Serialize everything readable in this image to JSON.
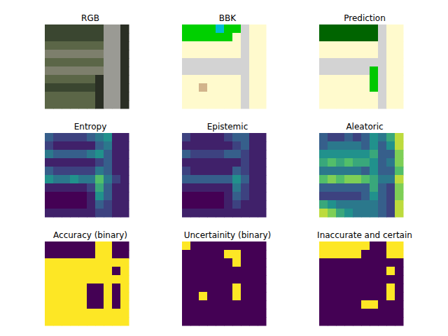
{
  "chart_data": [
    {
      "type": "image",
      "title": "RGB",
      "tick_labels": false,
      "colors": [
        "#3a4630",
        "#5b6647",
        "#9a9a94",
        "#2a2f24",
        "#7d7f6c"
      ],
      "cells": [
        [
          0,
          0,
          0,
          0,
          0,
          0,
          0,
          2,
          2,
          3
        ],
        [
          0,
          0,
          0,
          0,
          0,
          0,
          0,
          2,
          2,
          3
        ],
        [
          1,
          1,
          1,
          1,
          1,
          1,
          1,
          2,
          2,
          3
        ],
        [
          4,
          4,
          4,
          4,
          4,
          4,
          4,
          2,
          2,
          3
        ],
        [
          1,
          1,
          1,
          1,
          1,
          1,
          1,
          2,
          2,
          3
        ],
        [
          4,
          4,
          4,
          4,
          4,
          4,
          4,
          2,
          2,
          3
        ],
        [
          1,
          1,
          1,
          1,
          1,
          1,
          3,
          2,
          2,
          3
        ],
        [
          0,
          0,
          0,
          0,
          0,
          0,
          3,
          2,
          2,
          3
        ],
        [
          1,
          1,
          1,
          1,
          1,
          1,
          3,
          2,
          2,
          3
        ],
        [
          1,
          1,
          1,
          1,
          1,
          1,
          3,
          2,
          2,
          3
        ]
      ]
    },
    {
      "type": "image",
      "title": "BBK",
      "tick_labels": false,
      "colors": [
        "#00d000",
        "#fffacd",
        "#d3d3d3",
        "#00bcd4",
        "#d2b48c"
      ],
      "cells": [
        [
          0,
          0,
          0,
          0,
          3,
          0,
          0,
          2,
          1,
          1
        ],
        [
          0,
          0,
          0,
          0,
          0,
          0,
          1,
          2,
          1,
          1
        ],
        [
          1,
          1,
          1,
          1,
          1,
          1,
          1,
          2,
          1,
          1
        ],
        [
          1,
          1,
          1,
          1,
          1,
          1,
          1,
          2,
          1,
          1
        ],
        [
          2,
          2,
          2,
          2,
          2,
          2,
          2,
          2,
          1,
          1
        ],
        [
          2,
          2,
          2,
          2,
          2,
          2,
          2,
          2,
          1,
          1
        ],
        [
          1,
          1,
          1,
          1,
          1,
          1,
          1,
          2,
          1,
          1
        ],
        [
          1,
          1,
          4,
          1,
          1,
          1,
          1,
          2,
          1,
          1
        ],
        [
          1,
          1,
          1,
          1,
          1,
          1,
          1,
          2,
          1,
          1
        ],
        [
          1,
          1,
          1,
          1,
          1,
          1,
          1,
          2,
          1,
          1
        ]
      ]
    },
    {
      "type": "image",
      "title": "Prediction",
      "tick_labels": false,
      "colors": [
        "#006400",
        "#fffacd",
        "#d3d3d3",
        "#00c800"
      ],
      "cells": [
        [
          0,
          0,
          0,
          0,
          0,
          0,
          0,
          2,
          1,
          1
        ],
        [
          0,
          0,
          0,
          0,
          0,
          0,
          0,
          2,
          1,
          1
        ],
        [
          1,
          1,
          1,
          1,
          1,
          1,
          1,
          2,
          1,
          1
        ],
        [
          1,
          1,
          1,
          1,
          1,
          1,
          1,
          2,
          1,
          1
        ],
        [
          2,
          2,
          2,
          2,
          2,
          2,
          2,
          2,
          1,
          1
        ],
        [
          2,
          2,
          2,
          2,
          2,
          2,
          3,
          2,
          1,
          1
        ],
        [
          1,
          1,
          1,
          1,
          1,
          1,
          3,
          2,
          1,
          1
        ],
        [
          1,
          1,
          1,
          1,
          1,
          1,
          3,
          2,
          1,
          1
        ],
        [
          1,
          1,
          1,
          1,
          1,
          1,
          1,
          2,
          1,
          1
        ],
        [
          1,
          1,
          1,
          1,
          1,
          1,
          1,
          2,
          1,
          1
        ]
      ]
    },
    {
      "type": "heatmap",
      "title": "Entropy",
      "tick_labels": false,
      "color_range": [
        0,
        1
      ],
      "cells": [
        [
          0.3,
          0.2,
          0.2,
          0.2,
          0.2,
          0.3,
          0.4,
          0.5,
          0.1,
          0.1
        ],
        [
          0.2,
          0.1,
          0.1,
          0.1,
          0.1,
          0.1,
          0.3,
          0.4,
          0.1,
          0.1
        ],
        [
          0.4,
          0.3,
          0.3,
          0.3,
          0.3,
          0.4,
          0.5,
          0.3,
          0.1,
          0.1
        ],
        [
          0.1,
          0.1,
          0.1,
          0.1,
          0.1,
          0.1,
          0.2,
          0.3,
          0.1,
          0.1
        ],
        [
          0.3,
          0.2,
          0.2,
          0.2,
          0.2,
          0.2,
          0.4,
          0.3,
          0.1,
          0.1
        ],
        [
          0.5,
          0.4,
          0.4,
          0.5,
          0.4,
          0.4,
          0.7,
          0.4,
          0.2,
          0.1
        ],
        [
          0.1,
          0.1,
          0.1,
          0.1,
          0.1,
          0.2,
          0.6,
          0.3,
          0.1,
          0.1
        ],
        [
          0.0,
          0.0,
          0.0,
          0.0,
          0.0,
          0.1,
          0.5,
          0.3,
          0.1,
          0.1
        ],
        [
          0.0,
          0.0,
          0.0,
          0.0,
          0.0,
          0.1,
          0.3,
          0.2,
          0.1,
          0.1
        ],
        [
          0.1,
          0.1,
          0.1,
          0.1,
          0.1,
          0.1,
          0.2,
          0.2,
          0.1,
          0.1
        ]
      ]
    },
    {
      "type": "heatmap",
      "title": "Epistemic",
      "tick_labels": false,
      "color_range": [
        0,
        1
      ],
      "cells": [
        [
          0.2,
          0.1,
          0.1,
          0.1,
          0.1,
          0.2,
          0.3,
          0.3,
          0.1,
          0.1
        ],
        [
          0.1,
          0.1,
          0.1,
          0.1,
          0.1,
          0.1,
          0.2,
          0.3,
          0.1,
          0.1
        ],
        [
          0.3,
          0.2,
          0.2,
          0.2,
          0.2,
          0.3,
          0.3,
          0.2,
          0.1,
          0.1
        ],
        [
          0.1,
          0.1,
          0.1,
          0.1,
          0.1,
          0.1,
          0.1,
          0.2,
          0.1,
          0.1
        ],
        [
          0.2,
          0.1,
          0.1,
          0.1,
          0.1,
          0.1,
          0.3,
          0.2,
          0.1,
          0.1
        ],
        [
          0.3,
          0.3,
          0.3,
          0.3,
          0.3,
          0.3,
          0.5,
          0.3,
          0.1,
          0.1
        ],
        [
          0.1,
          0.1,
          0.1,
          0.1,
          0.1,
          0.1,
          0.4,
          0.2,
          0.1,
          0.1
        ],
        [
          0.0,
          0.0,
          0.0,
          0.0,
          0.0,
          0.1,
          0.3,
          0.2,
          0.1,
          0.1
        ],
        [
          0.0,
          0.0,
          0.0,
          0.0,
          0.0,
          0.1,
          0.2,
          0.1,
          0.1,
          0.1
        ],
        [
          0.1,
          0.1,
          0.1,
          0.1,
          0.1,
          0.1,
          0.1,
          0.1,
          0.1,
          0.1
        ]
      ]
    },
    {
      "type": "heatmap",
      "title": "Aleatoric",
      "tick_labels": false,
      "color_range": [
        0,
        1
      ],
      "cells": [
        [
          0.3,
          0.2,
          0.2,
          0.3,
          0.2,
          0.3,
          0.5,
          0.4,
          0.6,
          0.9
        ],
        [
          0.3,
          0.4,
          0.4,
          0.4,
          0.4,
          0.3,
          0.5,
          0.3,
          0.5,
          0.9
        ],
        [
          0.5,
          0.5,
          0.5,
          0.5,
          0.5,
          0.5,
          0.6,
          0.3,
          0.3,
          0.8
        ],
        [
          0.6,
          0.7,
          0.6,
          0.7,
          0.6,
          0.6,
          0.5,
          0.3,
          0.4,
          0.8
        ],
        [
          0.4,
          0.4,
          0.4,
          0.4,
          0.4,
          0.3,
          0.5,
          0.3,
          0.3,
          0.7
        ],
        [
          0.7,
          0.8,
          0.7,
          0.8,
          0.8,
          0.7,
          0.6,
          0.4,
          0.4,
          0.9
        ],
        [
          0.3,
          0.3,
          0.3,
          0.3,
          0.3,
          0.3,
          0.6,
          0.3,
          0.2,
          0.8
        ],
        [
          0.2,
          0.2,
          0.2,
          0.2,
          0.2,
          0.3,
          0.5,
          0.3,
          0.2,
          0.8
        ],
        [
          0.6,
          0.5,
          0.4,
          0.4,
          0.4,
          0.4,
          0.4,
          0.3,
          0.2,
          0.9
        ],
        [
          0.9,
          0.8,
          0.6,
          0.5,
          0.4,
          0.4,
          0.4,
          0.3,
          0.2,
          0.9
        ]
      ]
    },
    {
      "type": "heatmap",
      "title": "Accuracy (binary)",
      "tick_labels": false,
      "color_range": [
        0,
        1
      ],
      "cells": [
        [
          0,
          0,
          0,
          0,
          0,
          0,
          1,
          1,
          0,
          0
        ],
        [
          0,
          0,
          0,
          0,
          0,
          0,
          1,
          1,
          0,
          0
        ],
        [
          1,
          1,
          1,
          1,
          1,
          1,
          1,
          1,
          1,
          1
        ],
        [
          1,
          1,
          1,
          1,
          1,
          1,
          1,
          1,
          0,
          1
        ],
        [
          1,
          1,
          1,
          1,
          1,
          1,
          1,
          1,
          1,
          1
        ],
        [
          1,
          1,
          1,
          1,
          1,
          0,
          0,
          1,
          0,
          1
        ],
        [
          1,
          1,
          1,
          1,
          1,
          0,
          0,
          1,
          0,
          1
        ],
        [
          1,
          1,
          1,
          1,
          1,
          0,
          0,
          1,
          0,
          1
        ],
        [
          1,
          1,
          1,
          1,
          1,
          1,
          1,
          1,
          1,
          1
        ],
        [
          1,
          1,
          1,
          1,
          1,
          1,
          1,
          1,
          1,
          1
        ]
      ]
    },
    {
      "type": "heatmap",
      "title": "Uncertainity (binary)",
      "tick_labels": false,
      "color_range": [
        0,
        1
      ],
      "cells": [
        [
          1,
          0,
          0,
          0,
          0,
          0,
          0,
          0,
          0,
          0
        ],
        [
          0,
          0,
          0,
          0,
          0,
          1,
          1,
          0,
          0,
          0
        ],
        [
          0,
          0,
          0,
          0,
          0,
          0,
          1,
          0,
          0,
          0
        ],
        [
          0,
          0,
          0,
          0,
          0,
          0,
          0,
          0,
          0,
          0
        ],
        [
          0,
          0,
          0,
          0,
          0,
          0,
          0,
          0,
          0,
          0
        ],
        [
          0,
          0,
          0,
          0,
          0,
          0,
          1,
          0,
          0,
          0
        ],
        [
          0,
          0,
          1,
          0,
          0,
          0,
          1,
          0,
          0,
          0
        ],
        [
          0,
          0,
          0,
          0,
          0,
          0,
          0,
          0,
          0,
          0
        ],
        [
          0,
          0,
          0,
          0,
          0,
          0,
          0,
          0,
          0,
          0
        ],
        [
          0,
          0,
          0,
          0,
          0,
          0,
          0,
          0,
          0,
          0
        ]
      ]
    },
    {
      "type": "heatmap",
      "title": "Inaccurate and certain",
      "tick_labels": false,
      "color_range": [
        0,
        1
      ],
      "cells": [
        [
          1,
          1,
          1,
          1,
          1,
          1,
          0,
          0,
          1,
          1
        ],
        [
          1,
          1,
          1,
          1,
          1,
          0,
          0,
          0,
          1,
          1
        ],
        [
          0,
          0,
          0,
          0,
          0,
          0,
          0,
          0,
          0,
          0
        ],
        [
          0,
          0,
          0,
          0,
          0,
          0,
          0,
          0,
          1,
          0
        ],
        [
          0,
          0,
          0,
          0,
          0,
          0,
          0,
          0,
          0,
          0
        ],
        [
          0,
          0,
          0,
          0,
          0,
          0,
          0,
          0,
          1,
          0
        ],
        [
          0,
          0,
          0,
          0,
          0,
          0,
          0,
          0,
          1,
          0
        ],
        [
          0,
          0,
          0,
          0,
          0,
          1,
          1,
          0,
          0,
          0
        ],
        [
          0,
          0,
          0,
          0,
          0,
          0,
          0,
          0,
          0,
          0
        ],
        [
          0,
          0,
          0,
          0,
          0,
          0,
          0,
          0,
          0,
          0
        ]
      ]
    }
  ]
}
